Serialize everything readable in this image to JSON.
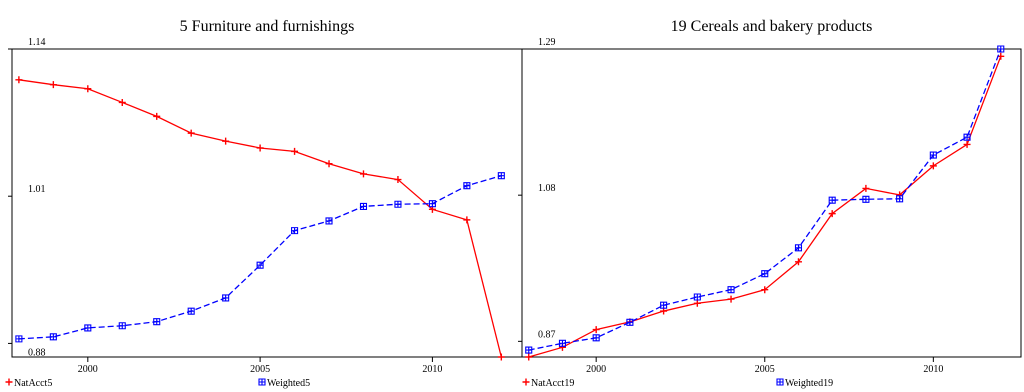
{
  "chart_data": [
    {
      "type": "line",
      "title": "5 Furniture and furnishings",
      "xlabel": "",
      "ylabel": "",
      "xlim": [
        1997.8,
        2012.6
      ],
      "ylim": [
        0.868,
        1.14
      ],
      "x_ticks": [
        2000,
        2005,
        2010
      ],
      "y_tick_labels": [
        {
          "value": 1.14,
          "label": "1.14"
        },
        {
          "value": 1.01,
          "label": "1.01"
        },
        {
          "value": 0.88,
          "label": "0.88"
        }
      ],
      "grid": false,
      "legend_placement": "bottom",
      "x": [
        1998,
        1999,
        2000,
        2001,
        2002,
        2003,
        2004,
        2005,
        2006,
        2007,
        2008,
        2009,
        2010,
        2011,
        2012
      ],
      "series": [
        {
          "name": "NatAcct5",
          "color": "#ff0000",
          "dash": "solid",
          "marker": "plus",
          "values": [
            1.1128,
            1.1085,
            1.1049,
            1.0928,
            1.0805,
            1.0657,
            1.0586,
            1.0526,
            1.0496,
            1.0387,
            1.0297,
            1.0247,
            0.9984,
            0.9891,
            0.868
          ]
        },
        {
          "name": "Weighted5",
          "color": "#0000ff",
          "dash": "dashed",
          "marker": "square",
          "values": [
            0.884,
            0.8858,
            0.8937,
            0.8956,
            0.8992,
            0.9085,
            0.9202,
            0.9491,
            0.9796,
            0.9882,
            1.001,
            1.0029,
            1.0034,
            1.0193,
            1.0281
          ]
        }
      ]
    },
    {
      "type": "line",
      "title": "19 Cereals and bakery products",
      "xlabel": "",
      "ylabel": "",
      "xlim": [
        1997.8,
        2012.6
      ],
      "ylim": [
        0.8475,
        1.29
      ],
      "x_ticks": [
        2000,
        2005,
        2010
      ],
      "y_tick_labels": [
        {
          "value": 1.29,
          "label": "1.29"
        },
        {
          "value": 1.08,
          "label": "1.08"
        },
        {
          "value": 0.87,
          "label": "0.87"
        }
      ],
      "grid": false,
      "legend_placement": "bottom",
      "x": [
        1998,
        1999,
        2000,
        2001,
        2002,
        2003,
        2004,
        2005,
        2006,
        2007,
        2008,
        2009,
        2010,
        2011,
        2012
      ],
      "series": [
        {
          "name": "NatAcct19",
          "color": "#ff0000",
          "dash": "solid",
          "marker": "plus",
          "values": [
            0.8475,
            0.8614,
            0.8869,
            0.8979,
            0.9135,
            0.9247,
            0.9307,
            0.9442,
            0.9843,
            1.0535,
            1.0897,
            1.0804,
            1.1221,
            1.1529,
            1.2795
          ]
        },
        {
          "name": "Weighted19",
          "color": "#0000ff",
          "dash": "dashed",
          "marker": "square",
          "values": [
            0.8574,
            0.8672,
            0.875,
            0.8974,
            0.9219,
            0.9337,
            0.9442,
            0.9672,
            1.0043,
            1.0728,
            1.0741,
            1.0748,
            1.1376,
            1.1633,
            1.29
          ]
        }
      ]
    }
  ]
}
